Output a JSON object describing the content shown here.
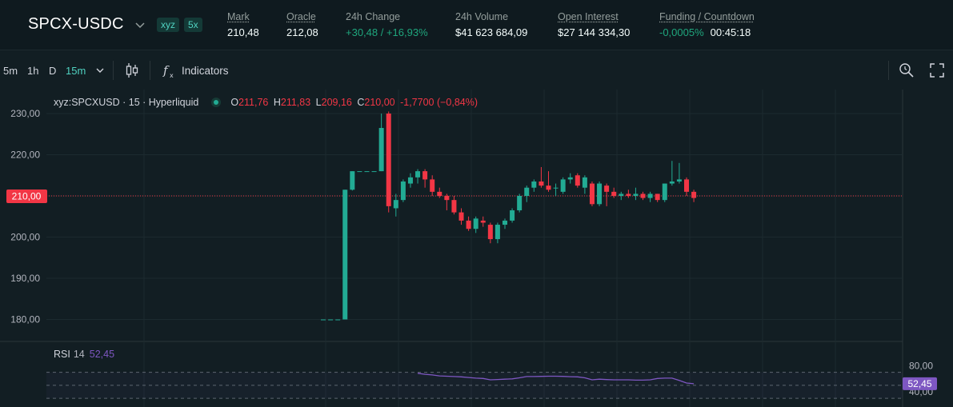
{
  "market": {
    "pair": "SPCX-USDC",
    "badge_dex": "xyz",
    "badge_leverage": "5x",
    "stats": {
      "mark_label": "Mark",
      "mark_value": "210,48",
      "oracle_label": "Oracle",
      "oracle_value": "212,08",
      "change_label": "24h Change",
      "change_value": "+30,48 / +16,93%",
      "volume_label": "24h Volume",
      "volume_value": "$41 623 684,09",
      "oi_label": "Open Interest",
      "oi_value": "$27 144 334,30",
      "funding_label": "Funding / Countdown",
      "funding_value": "-0,0005%",
      "countdown_value": "00:45:18"
    }
  },
  "toolbar": {
    "timeframes": [
      "5m",
      "1h",
      "D",
      "15m"
    ],
    "active_timeframe": "15m",
    "indicators_label": "Indicators",
    "icons": [
      "timeframe-chevron-icon",
      "candles-icon",
      "indicators-icon",
      "zoom-icon",
      "fullscreen-icon"
    ]
  },
  "legend": {
    "symbol": "xyz:SPCXUSD · 15 · Hyperliquid",
    "o_label": "O",
    "o_value": "211,76",
    "h_label": "H",
    "h_value": "211,83",
    "l_label": "L",
    "l_value": "209,16",
    "c_label": "C",
    "c_value": "210,00",
    "change": "-1,7700 (−0,84%)"
  },
  "rsi": {
    "label": "RSI",
    "period": "14",
    "value": "52,45"
  },
  "colors": {
    "up": "#22ab94",
    "down": "#f23645",
    "rsi": "#7e57c2",
    "accent": "#50d2c1"
  },
  "chart_data": {
    "type": "candlestick",
    "title": "xyz:SPCXUSD · 15 · Hyperliquid",
    "y_ticks": [
      "230,00",
      "220,00",
      "210,00",
      "200,00",
      "190,00",
      "180,00"
    ],
    "y_range": [
      176,
      231.5
    ],
    "current_price": 210.0,
    "current_price_label": "210,00",
    "candles": [
      [
        180.0,
        180.0,
        180.0,
        180.0
      ],
      [
        180.0,
        180.0,
        180.0,
        180.0
      ],
      [
        180.0,
        180.0,
        180.0,
        180.0
      ],
      [
        180.0,
        211.5,
        180.0,
        211.5
      ],
      [
        211.5,
        216.0,
        211.3,
        216.0
      ],
      [
        216.0,
        216.0,
        216.0,
        216.0
      ],
      [
        216.0,
        216.0,
        216.0,
        216.0
      ],
      [
        216.0,
        216.0,
        216.0,
        216.0
      ],
      [
        216.0,
        230.0,
        216.0,
        226.5
      ],
      [
        230.0,
        230.5,
        206.0,
        207.5
      ],
      [
        207.0,
        210.5,
        205.0,
        209.0
      ],
      [
        209.0,
        214.0,
        208.5,
        213.5
      ],
      [
        213.0,
        215.5,
        212.0,
        214.5
      ],
      [
        214.5,
        216.5,
        213.0,
        216.0
      ],
      [
        216.0,
        216.5,
        212.0,
        214.0
      ],
      [
        214.0,
        215.0,
        210.0,
        211.0
      ],
      [
        211.0,
        212.0,
        209.5,
        210.0
      ],
      [
        210.0,
        210.5,
        206.5,
        209.0
      ],
      [
        209.0,
        210.0,
        205.5,
        206.0
      ],
      [
        206.0,
        207.0,
        203.0,
        204.0
      ],
      [
        204.0,
        205.0,
        201.5,
        202.0
      ],
      [
        202.0,
        205.0,
        201.0,
        204.5
      ],
      [
        204.0,
        205.0,
        202.5,
        203.5
      ],
      [
        203.0,
        203.5,
        198.5,
        199.5
      ],
      [
        199.5,
        203.5,
        198.5,
        203.0
      ],
      [
        203.0,
        204.5,
        202.0,
        204.0
      ],
      [
        204.0,
        207.0,
        203.5,
        206.5
      ],
      [
        206.5,
        210.5,
        206.0,
        210.0
      ],
      [
        210.0,
        212.5,
        208.5,
        212.0
      ],
      [
        212.0,
        214.0,
        211.0,
        213.5
      ],
      [
        213.5,
        217.0,
        212.0,
        212.5
      ],
      [
        212.5,
        216.0,
        211.0,
        211.5
      ],
      [
        212.0,
        213.0,
        210.0,
        212.0
      ],
      [
        211.0,
        214.5,
        210.5,
        214.0
      ],
      [
        214.0,
        215.5,
        213.0,
        214.5
      ],
      [
        215.0,
        215.5,
        212.0,
        212.5
      ],
      [
        212.0,
        215.0,
        210.5,
        214.5
      ],
      [
        213.0,
        213.5,
        207.5,
        208.0
      ],
      [
        208.0,
        213.5,
        207.5,
        213.0
      ],
      [
        212.5,
        213.0,
        207.5,
        211.0
      ],
      [
        211.0,
        212.0,
        209.5,
        210.0
      ],
      [
        210.0,
        211.0,
        209.0,
        210.5
      ],
      [
        210.5,
        211.5,
        209.5,
        210.0
      ],
      [
        210.0,
        212.0,
        209.0,
        210.5
      ],
      [
        210.5,
        211.0,
        209.0,
        209.5
      ],
      [
        209.5,
        211.0,
        208.5,
        210.5
      ],
      [
        210.5,
        210.5,
        208.5,
        209.0
      ],
      [
        209.0,
        213.0,
        208.5,
        213.0
      ],
      [
        213.0,
        218.5,
        212.5,
        213.5
      ],
      [
        213.5,
        218.0,
        213.0,
        214.0
      ],
      [
        214.0,
        214.5,
        210.0,
        211.0
      ],
      [
        211.0,
        211.5,
        208.5,
        209.5
      ]
    ],
    "rsi": {
      "y_ticks": [
        "80,00",
        "40,00"
      ],
      "y_range": [
        34.25,
        90.0
      ],
      "upper_band": 70,
      "lower_band": 30,
      "mid_level": 50,
      "values": [
        null,
        null,
        null,
        null,
        null,
        null,
        null,
        null,
        null,
        null,
        null,
        null,
        null,
        68.5,
        67.0,
        66.0,
        64.5,
        64.0,
        63.5,
        63.0,
        62.0,
        61.0,
        60.5,
        58.5,
        59.0,
        59.5,
        60.0,
        61.5,
        63.5,
        63.5,
        63.8,
        64.0,
        64.0,
        63.8,
        63.2,
        63.0,
        61.5,
        58.5,
        59.5,
        58.8,
        58.5,
        58.5,
        58.5,
        58.0,
        58.0,
        58.5,
        60.5,
        61.0,
        61.0,
        57.5,
        53.5,
        52.45
      ]
    }
  }
}
